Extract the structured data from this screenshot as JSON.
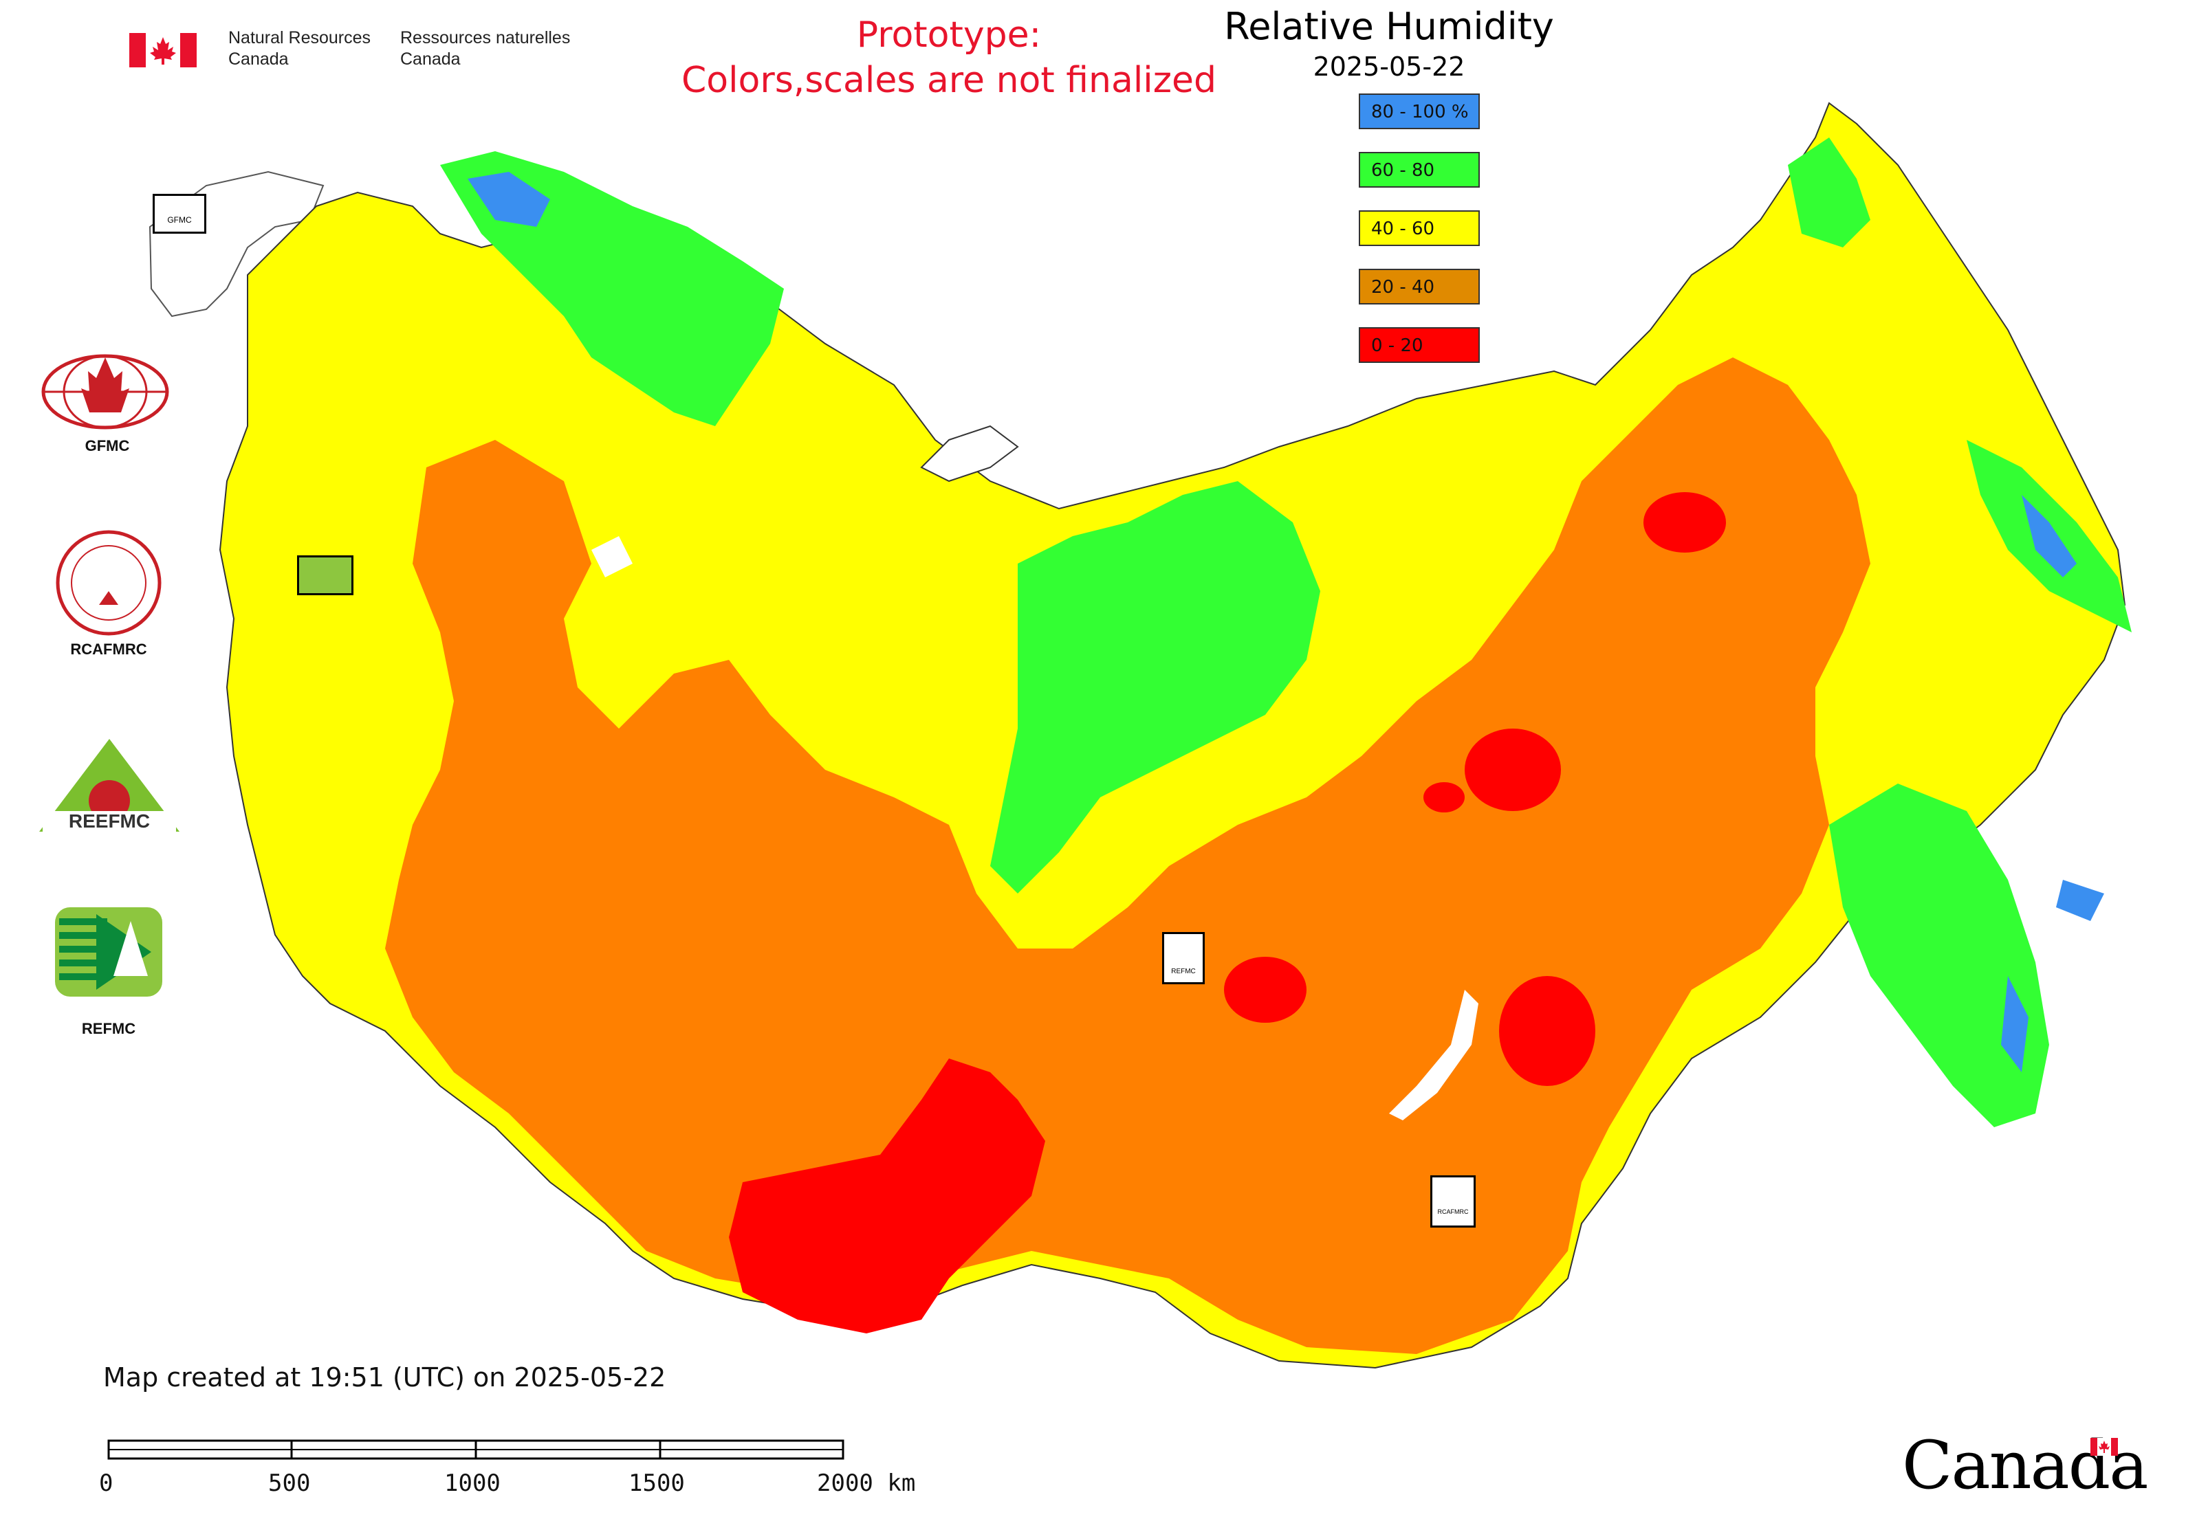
{
  "header": {
    "dept_en": "Natural Resources\nCanada",
    "dept_fr": "Ressources naturelles\nCanada"
  },
  "notice": {
    "line1": "Prototype:",
    "line2": "Colors,scales are not finalized"
  },
  "map": {
    "title": "Relative Humidity",
    "date": "2025-05-22",
    "legend": [
      {
        "label": "80 - 100 %",
        "color": "#3a8ff0"
      },
      {
        "label": "60 - 80",
        "color": "#33ff33"
      },
      {
        "label": "40 - 60",
        "color": "#ffff00"
      },
      {
        "label": "20 - 40",
        "color": "#e08a00"
      },
      {
        "label": "0 - 20",
        "color": "#ff0000"
      }
    ],
    "region_fill_colors": {
      "high": "#3a8ff0",
      "moist": "#33ff33",
      "moderate": "#ffff00",
      "dry": "#ff8000",
      "very_dry": "#ff0000"
    }
  },
  "logos": {
    "gfmc": "GFMC",
    "rcafmrc": "RCAFMRC",
    "reefmc": "REEFMC",
    "refmc": "REFMC",
    "map_marker_gfmc": "GFMC",
    "map_marker_refmc": "REFMC",
    "map_marker_rcafmrc": "RCAFMRC"
  },
  "footer": {
    "created": "Map created at 19:51 (UTC) on 2025-05-22",
    "scale_labels": [
      "0",
      "500",
      "1000",
      "1500",
      "2000 km"
    ],
    "wordmark": "Canada"
  }
}
